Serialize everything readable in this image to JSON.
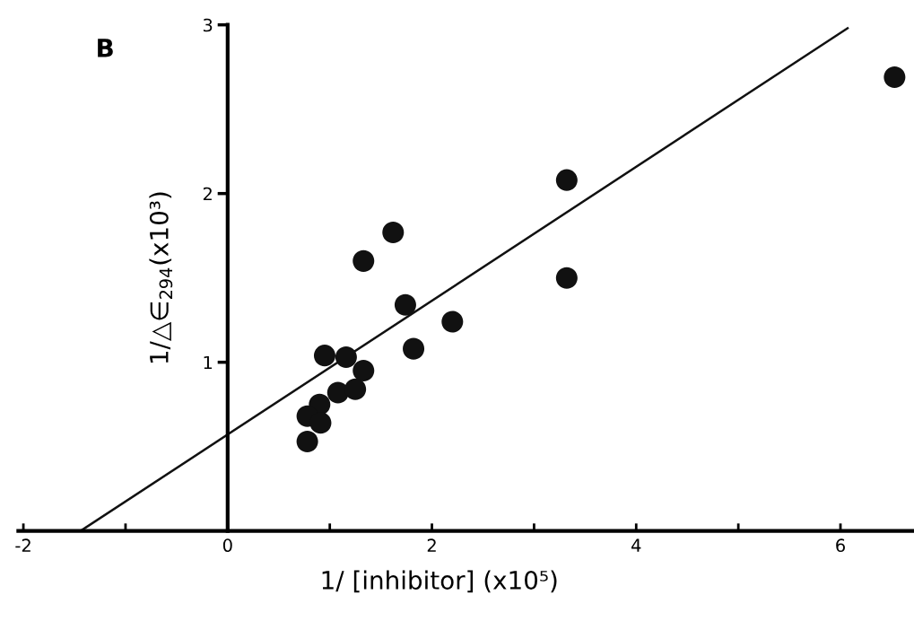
{
  "chart_data": {
    "type": "scatter",
    "title": "B",
    "xlabel": "1/ [inhibitor] (x10⁵)",
    "ylabel": "1/△∈$_{294}$(x10³)",
    "xlim": [
      -2.05,
      6.72
    ],
    "ylim": [
      0,
      3
    ],
    "xticks": [
      {
        "value": -2,
        "label": "-2"
      },
      {
        "value": -1,
        "label": null
      },
      0,
      {
        "value": 1,
        "label": null
      },
      2,
      {
        "value": 3,
        "label": null
      },
      4,
      {
        "value": 5,
        "label": null
      },
      6
    ],
    "yticks": [
      1,
      2,
      3
    ],
    "grid": false,
    "legend": false,
    "marker": "circle",
    "series": [
      {
        "color": "#111111",
        "x": [
          1.62,
          1.33,
          1.74,
          2.2,
          1.82,
          0.95,
          1.16,
          1.33,
          1.08,
          1.25,
          0.9,
          0.78,
          0.91,
          0.78,
          3.32,
          3.32,
          6.53
        ],
        "values": [
          1.77,
          1.6,
          1.34,
          1.24,
          1.08,
          1.04,
          1.03,
          0.95,
          0.82,
          0.84,
          0.75,
          0.68,
          0.64,
          0.53,
          2.08,
          1.5,
          2.69
        ]
      },
      {
        "type": "line",
        "color": "#111111",
        "x": [
          -1.44,
          6.07
        ],
        "values": [
          0,
          2.98
        ],
        "marker": "none",
        "line_style": "solid"
      }
    ]
  }
}
